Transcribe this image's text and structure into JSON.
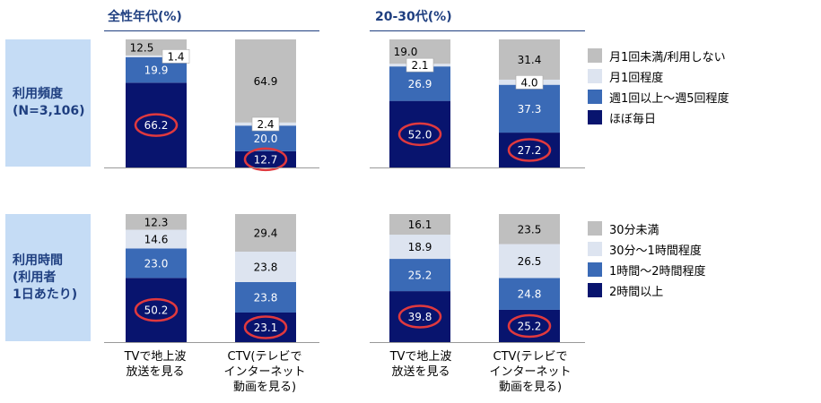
{
  "group_headers": [
    "全性年代(%)",
    "20-30代(%)"
  ],
  "row_labels": [
    "利用頻度\n(N=3,106)",
    "利用時間\n(利用者\n1日あたり)"
  ],
  "category_labels": [
    "TVで地上波\n放送を見る",
    "CTV(テレビで\nインターネット\n動画を見る)"
  ],
  "colors": {
    "dark_navy": "#08146e",
    "medium_blue": "#3a6ab6",
    "light_blue": "#dde4f0",
    "gray": "#bfbfbf",
    "highlight": "#e0393e",
    "header": "#1f3f80",
    "rowlabel_bg": "#c5dcf5"
  },
  "chart_data": [
    {
      "type": "bar",
      "stacked": true,
      "panel": "利用頻度 / 全性年代",
      "categories": [
        "TVで地上波放送を見る",
        "CTV(テレビでインターネット動画を見る)"
      ],
      "series": [
        {
          "name": "ほぼ毎日",
          "values": [
            66.2,
            12.7
          ]
        },
        {
          "name": "週1回以上～週5回程度",
          "values": [
            19.9,
            20.0
          ]
        },
        {
          "name": "月1回程度",
          "values": [
            1.4,
            2.4
          ]
        },
        {
          "name": "月1回未満/利用しない",
          "values": [
            12.5,
            64.9
          ]
        }
      ],
      "highlighted_series": "ほぼ毎日",
      "ylim": [
        0,
        100
      ]
    },
    {
      "type": "bar",
      "stacked": true,
      "panel": "利用頻度 / 20-30代",
      "categories": [
        "TVで地上波放送を見る",
        "CTV(テレビでインターネット動画を見る)"
      ],
      "series": [
        {
          "name": "ほぼ毎日",
          "values": [
            52.0,
            27.2
          ]
        },
        {
          "name": "週1回以上～週5回程度",
          "values": [
            26.9,
            37.3
          ]
        },
        {
          "name": "月1回程度",
          "values": [
            2.1,
            4.0
          ]
        },
        {
          "name": "月1回未満/利用しない",
          "values": [
            19.0,
            31.4
          ]
        }
      ],
      "highlighted_series": "ほぼ毎日",
      "ylim": [
        0,
        100
      ]
    },
    {
      "type": "bar",
      "stacked": true,
      "panel": "利用時間 / 全性年代",
      "categories": [
        "TVで地上波放送を見る",
        "CTV(テレビでインターネット動画を見る)"
      ],
      "series": [
        {
          "name": "2時間以上",
          "values": [
            50.2,
            23.1
          ]
        },
        {
          "name": "1時間～2時間程度",
          "values": [
            23.0,
            23.8
          ]
        },
        {
          "name": "30分～1時間程度",
          "values": [
            14.6,
            23.8
          ]
        },
        {
          "name": "30分未満",
          "values": [
            12.3,
            29.4
          ]
        }
      ],
      "highlighted_series": "2時間以上",
      "ylim": [
        0,
        100
      ]
    },
    {
      "type": "bar",
      "stacked": true,
      "panel": "利用時間 / 20-30代",
      "categories": [
        "TVで地上波放送を見る",
        "CTV(テレビでインターネット動画を見る)"
      ],
      "series": [
        {
          "name": "2時間以上",
          "values": [
            39.8,
            25.2
          ]
        },
        {
          "name": "1時間～2時間程度",
          "values": [
            25.2,
            24.8
          ]
        },
        {
          "name": "30分～1時間程度",
          "values": [
            18.9,
            26.5
          ]
        },
        {
          "name": "30分未満",
          "values": [
            16.1,
            23.5
          ]
        }
      ],
      "highlighted_series": "2時間以上",
      "ylim": [
        0,
        100
      ]
    }
  ],
  "legends": [
    {
      "items": [
        {
          "label": "月1回未満/利用しない",
          "color": "#bfbfbf"
        },
        {
          "label": "月1回程度",
          "color": "#dde4f0"
        },
        {
          "label": "週1回以上～週5回程度",
          "color": "#3a6ab6"
        },
        {
          "label": "ほぼ毎日",
          "color": "#08146e"
        }
      ]
    },
    {
      "items": [
        {
          "label": "30分未満",
          "color": "#bfbfbf"
        },
        {
          "label": "30分～1時間程度",
          "color": "#dde4f0"
        },
        {
          "label": "1時間～2時間程度",
          "color": "#3a6ab6"
        },
        {
          "label": "2時間以上",
          "color": "#08146e"
        }
      ]
    }
  ]
}
